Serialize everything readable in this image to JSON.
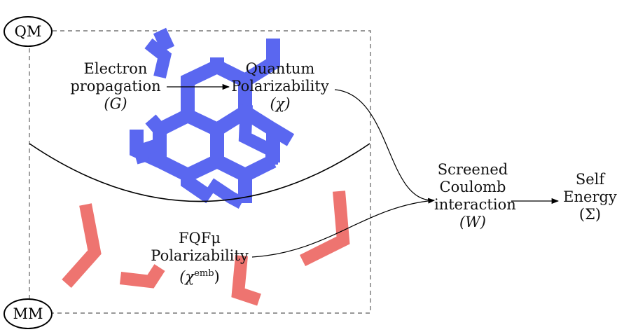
{
  "regions": {
    "qm": "QM",
    "mm": "MM"
  },
  "nodes": {
    "electron": {
      "line1": "Electron",
      "line2": "propagation",
      "line3": "(G)"
    },
    "quantum": {
      "line1": "Quantum",
      "line2": "Polarizability",
      "line3": "(χ)"
    },
    "fqfmu": {
      "line1": "FQFμ",
      "line2": "Polarizability",
      "line3": "(χ",
      "sup": "emb",
      "close": ")"
    },
    "screened": {
      "line1": "Screened",
      "line2": "Coulomb",
      "line3": "interaction",
      "line4": "(W)"
    },
    "self": {
      "line1": "Self",
      "line2": "Energy",
      "line3": "(Σ)"
    }
  },
  "colors": {
    "molecule_qm": "#5a67f0",
    "molecule_mm": "#ee7470",
    "frame": "#777777"
  }
}
